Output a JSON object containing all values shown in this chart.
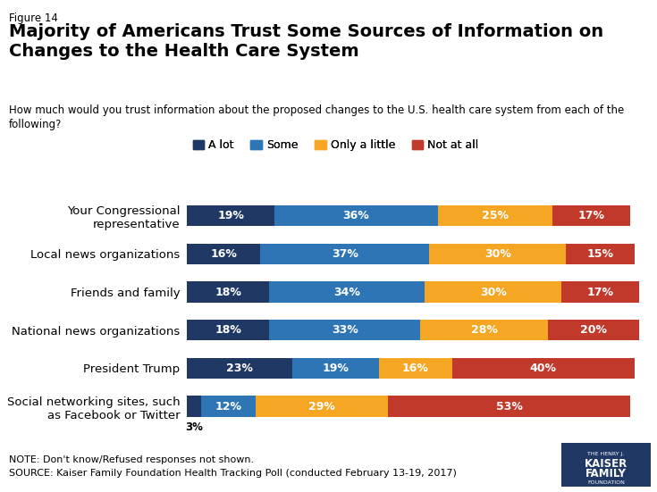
{
  "figure_label": "Figure 14",
  "title": "Majority of Americans Trust Some Sources of Information on\nChanges to the Health Care System",
  "subtitle": "How much would you trust information about the proposed changes to the U.S. health care system from each of the\nfollowing?",
  "note": "NOTE: Don't know/Refused responses not shown.",
  "source": "SOURCE: Kaiser Family Foundation Health Tracking Poll (conducted February 13-19, 2017)",
  "categories": [
    "Your Congressional\nrepresentative",
    "Local news organizations",
    "Friends and family",
    "National news organizations",
    "President Trump",
    "Social networking sites, such\nas Facebook or Twitter"
  ],
  "series": {
    "A lot": [
      19,
      16,
      18,
      18,
      23,
      3
    ],
    "Some": [
      36,
      37,
      34,
      33,
      19,
      12
    ],
    "Only a little": [
      25,
      30,
      30,
      28,
      16,
      29
    ],
    "Not at all": [
      17,
      15,
      17,
      20,
      40,
      53
    ]
  },
  "colors": {
    "A lot": "#1f3864",
    "Some": "#2e75b6",
    "Only a little": "#f5a623",
    "Not at all": "#c0392b"
  },
  "legend_order": [
    "A lot",
    "Some",
    "Only a little",
    "Not at all"
  ],
  "background_color": "#ffffff",
  "bar_height": 0.55,
  "xlim": [
    0,
    100
  ]
}
